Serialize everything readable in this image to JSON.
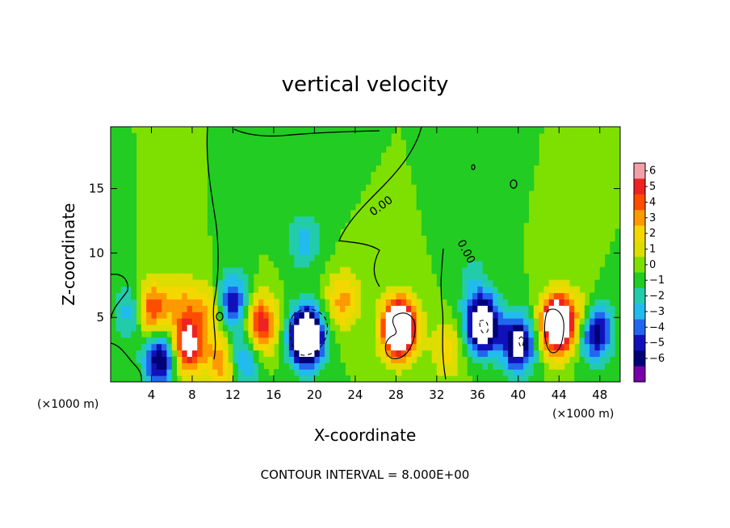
{
  "chart_data": {
    "type": "heatmap",
    "title": "vertical velocity",
    "xlabel": "X-coordinate",
    "ylabel": "Z-coordinate",
    "x_unit": "(×1000 m)",
    "x_unit_right": "(×1000 m)",
    "xlim": [
      0,
      50
    ],
    "ylim": [
      0,
      19.8
    ],
    "x_ticks": [
      4,
      8,
      12,
      16,
      20,
      24,
      28,
      32,
      36,
      40,
      44,
      48
    ],
    "y_ticks": [
      5,
      10,
      15
    ],
    "colorbar": {
      "levels": [
        6,
        5,
        4,
        3,
        2,
        1,
        0,
        -1,
        -2,
        -3,
        -4,
        -5,
        -6
      ],
      "colors": [
        "#f2a0a8",
        "#ee2222",
        "#ff4d00",
        "#ff9900",
        "#f5d700",
        "#dddd00",
        "#7ee000",
        "#22cc22",
        "#22ccaa",
        "#22bbee",
        "#2266ee",
        "#1111bb",
        "#000077",
        "#7700aa"
      ]
    },
    "contour_labels": [
      "0.00",
      "0.00"
    ],
    "note": "CONTOUR INTERVAL = 8.000E+00",
    "features": [
      {
        "x": 2.0,
        "z": 5.5,
        "w": -3.0
      },
      {
        "x": 4.0,
        "z": 5.6,
        "w": 5.5
      },
      {
        "x": 4.9,
        "z": 1.8,
        "w": -6.5
      },
      {
        "x": 7.5,
        "z": 2.8,
        "w": 7.0
      },
      {
        "x": 7.0,
        "z": 6.2,
        "w": 2.5
      },
      {
        "x": 9.5,
        "z": 5.5,
        "w": 3.0
      },
      {
        "x": 11.0,
        "z": 1.5,
        "w": 4.0
      },
      {
        "x": 12.0,
        "z": 6.2,
        "w": -5.0
      },
      {
        "x": 13.0,
        "z": 1.8,
        "w": -4.0
      },
      {
        "x": 14.7,
        "z": 4.5,
        "w": 6.0
      },
      {
        "x": 19.0,
        "z": 11.0,
        "w": -2.5
      },
      {
        "x": 19.2,
        "z": 3.5,
        "w": -11.0
      },
      {
        "x": 22.8,
        "z": 6.3,
        "w": 3.5
      },
      {
        "x": 28.3,
        "z": 4.2,
        "w": 12.0
      },
      {
        "x": 36.5,
        "z": 4.5,
        "w": -9.0
      },
      {
        "x": 40.0,
        "z": 3.0,
        "w": -7.0
      },
      {
        "x": 43.8,
        "z": 4.5,
        "w": 11.0
      },
      {
        "x": 47.5,
        "z": 4.0,
        "w": -7.0
      },
      {
        "x": 46.5,
        "z": 5.0,
        "w": 3.0
      },
      {
        "x": 33.0,
        "z": 2.5,
        "w": 2.5
      },
      {
        "x": 35.5,
        "z": 8.0,
        "w": -1.5
      }
    ]
  }
}
